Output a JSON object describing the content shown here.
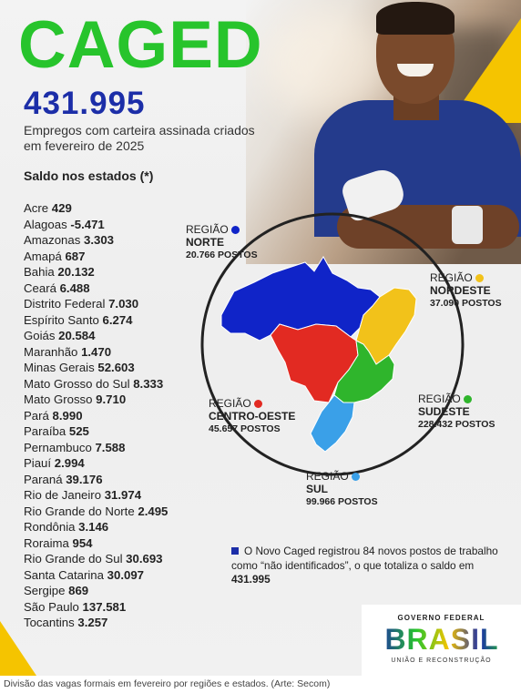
{
  "title": "CAGED",
  "total": "431.995",
  "subtitle": "Empregos com carteira assinada criados em fevereiro de 2025",
  "states_heading": "Saldo nos estados (*)",
  "states": [
    {
      "name": "Acre",
      "value": "429"
    },
    {
      "name": "Alagoas",
      "value": "-5.471"
    },
    {
      "name": "Amazonas",
      "value": "3.303"
    },
    {
      "name": "Amapá",
      "value": "687"
    },
    {
      "name": "Bahia",
      "value": "20.132"
    },
    {
      "name": "Ceará",
      "value": "6.488"
    },
    {
      "name": "Distrito Federal",
      "value": "7.030"
    },
    {
      "name": "Espírito Santo",
      "value": "6.274"
    },
    {
      "name": "Goiás",
      "value": "20.584"
    },
    {
      "name": "Maranhão",
      "value": "1.470"
    },
    {
      "name": "Minas Gerais",
      "value": "52.603"
    },
    {
      "name": "Mato Grosso do Sul",
      "value": "8.333"
    },
    {
      "name": "Mato Grosso",
      "value": "9.710"
    },
    {
      "name": "Pará",
      "value": "8.990"
    },
    {
      "name": "Paraíba",
      "value": "525"
    },
    {
      "name": "Pernambuco",
      "value": "7.588"
    },
    {
      "name": "Piauí",
      "value": "2.994"
    },
    {
      "name": "Paraná",
      "value": "39.176"
    },
    {
      "name": "Rio de Janeiro",
      "value": "31.974"
    },
    {
      "name": "Rio Grande do Norte",
      "value": "2.495"
    },
    {
      "name": "Rondônia",
      "value": "3.146"
    },
    {
      "name": "Roraima",
      "value": "954"
    },
    {
      "name": "Rio Grande do Sul",
      "value": "30.693"
    },
    {
      "name": "Santa Catarina",
      "value": "30.097"
    },
    {
      "name": "Sergipe",
      "value": "869"
    },
    {
      "name": "São Paulo",
      "value": "137.581"
    },
    {
      "name": "Tocantins",
      "value": "3.257"
    }
  ],
  "regions": {
    "norte": {
      "label": "REGIÃO",
      "name": "NORTE",
      "posts": "20.766 POSTOS",
      "color": "#1024c8"
    },
    "nordeste": {
      "label": "REGIÃO",
      "name": "NORDESTE",
      "posts": "37.090 POSTOS",
      "color": "#f2c21a"
    },
    "centro_oeste": {
      "label": "REGIÃO",
      "name": "CENTRO-OESTE",
      "posts": "45.657 POSTOS",
      "color": "#e22a22"
    },
    "sudeste": {
      "label": "REGIÃO",
      "name": "SUDESTE",
      "posts": "228.432 POSTOS",
      "color": "#2fb52c"
    },
    "sul": {
      "label": "REGIÃO",
      "name": "SUL",
      "posts": "99.966 POSTOS",
      "color": "#3aa0e8"
    }
  },
  "note": {
    "text": "O Novo Caged registrou 84 novos postos de trabalho como “não identificados”, o que totaliza o saldo em ",
    "total": "431.995"
  },
  "gov": {
    "top": "GOVERNO FEDERAL",
    "brand": "BRASIL",
    "sub": "UNIÃO E RECONSTRUÇÃO"
  },
  "caption": "Divisão das vagas formais em fevereiro por regiões e estados. (Arte: Secom)"
}
